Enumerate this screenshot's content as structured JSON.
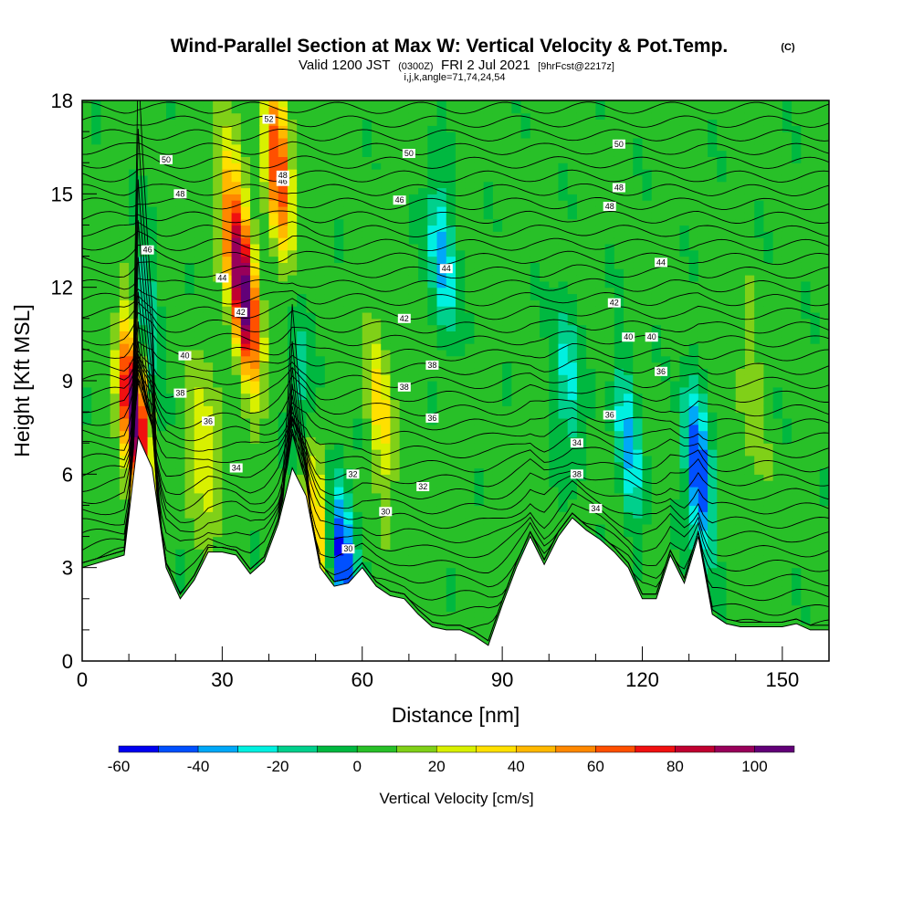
{
  "title": {
    "main": "Wind-Parallel Section at Max W: Vertical Velocity & Pot.Temp.",
    "copyright": "(C)",
    "valid_prefix": "Valid 1200 JST",
    "valid_zulu": "(0300Z)",
    "valid_date": "FRI 2 Jul 2021",
    "forecast": "[9hrFcst@2217z]",
    "section_params": "i,j,k,angle=71,74,24,54"
  },
  "chart_data": {
    "type": "heatmap",
    "xlabel": "Distance [nm]",
    "ylabel": "Height [Kft MSL]",
    "xlim": [
      0,
      160
    ],
    "ylim": [
      0,
      18
    ],
    "x_ticks": [
      "0",
      "30",
      "60",
      "90",
      "120",
      "150"
    ],
    "y_ticks": [
      "0",
      "3",
      "6",
      "9",
      "12",
      "15",
      "18"
    ],
    "x_tick_values": [
      0,
      30,
      60,
      90,
      120,
      150
    ],
    "y_tick_values": [
      0,
      3,
      6,
      9,
      12,
      15,
      18
    ],
    "colorbar": {
      "title": "Vertical Velocity [cm/s]",
      "range": [
        -60,
        110
      ],
      "step": 10,
      "tick_labels": [
        "-60",
        "-40",
        "-20",
        "0",
        "20",
        "40",
        "60",
        "80",
        "100"
      ],
      "tick_values": [
        -60,
        -40,
        -20,
        0,
        20,
        40,
        60,
        80,
        100
      ],
      "colors": [
        "#0000f0",
        "#0050ff",
        "#00a8f8",
        "#00f0e0",
        "#00d08c",
        "#00b840",
        "#28c028",
        "#80d018",
        "#d8f000",
        "#ffe000",
        "#ffb800",
        "#ff8800",
        "#ff5000",
        "#f01010",
        "#c00030",
        "#98005a",
        "#620078"
      ]
    },
    "terrain_profile_kft": {
      "x": [
        0,
        9,
        12,
        15,
        18,
        21,
        24,
        27,
        30,
        33,
        36,
        39,
        42,
        45,
        48,
        51,
        54,
        57,
        60,
        63,
        66,
        69,
        72,
        75,
        78,
        81,
        84,
        87,
        90,
        93,
        96,
        99,
        102,
        105,
        108,
        111,
        114,
        117,
        120,
        123,
        126,
        129,
        132,
        135,
        138,
        141,
        144,
        147,
        150,
        153,
        156,
        160
      ],
      "y": [
        3.0,
        3.4,
        7.2,
        6.2,
        3.0,
        2.0,
        2.6,
        3.5,
        3.5,
        3.4,
        2.8,
        3.2,
        4.4,
        6.2,
        5.3,
        3.0,
        2.4,
        2.5,
        3.0,
        2.4,
        2.1,
        2.0,
        1.5,
        1.1,
        1.0,
        1.0,
        0.8,
        0.5,
        1.8,
        3.0,
        4.0,
        3.1,
        4.0,
        4.6,
        4.2,
        3.9,
        3.5,
        3.0,
        2.0,
        2.0,
        3.4,
        2.5,
        4.0,
        1.5,
        1.2,
        1.1,
        1.1,
        1.1,
        1.1,
        1.2,
        1.0,
        1.0
      ]
    },
    "vertical_velocity_features": [
      {
        "x": 11,
        "y": 8.0,
        "w": 110
      },
      {
        "x": 26,
        "y": 6.8,
        "w": 30
      },
      {
        "x": 32,
        "y": 14.0,
        "w": 50
      },
      {
        "x": 35,
        "y": 11.5,
        "w": 90
      },
      {
        "x": 42,
        "y": 16.0,
        "w": 70
      },
      {
        "x": 50,
        "y": 5.0,
        "w": 40
      },
      {
        "x": 56,
        "y": 3.3,
        "w": -60
      },
      {
        "x": 64,
        "y": 8.0,
        "w": 30
      },
      {
        "x": 77,
        "y": 13.0,
        "w": -40
      },
      {
        "x": 14,
        "y": 11.0,
        "w": -25
      },
      {
        "x": 47,
        "y": 8.5,
        "w": -25
      },
      {
        "x": 104,
        "y": 9.0,
        "w": -30
      },
      {
        "x": 117,
        "y": 7.0,
        "w": -35
      },
      {
        "x": 132,
        "y": 6.0,
        "w": -60
      },
      {
        "x": 143,
        "y": 8.8,
        "w": 15
      }
    ],
    "potential_temperature_contours": [
      {
        "label": "30"
      },
      {
        "label": "30"
      },
      {
        "label": "32"
      },
      {
        "label": "32"
      },
      {
        "label": "34"
      },
      {
        "label": "34"
      },
      {
        "label": "34"
      },
      {
        "label": "36"
      },
      {
        "label": "36"
      },
      {
        "label": "36"
      },
      {
        "label": "36"
      },
      {
        "label": "38"
      },
      {
        "label": "38"
      },
      {
        "label": "38"
      },
      {
        "label": "38"
      },
      {
        "label": "40"
      },
      {
        "label": "40"
      },
      {
        "label": "40"
      },
      {
        "label": "42"
      },
      {
        "label": "42"
      },
      {
        "label": "42"
      },
      {
        "label": "44"
      },
      {
        "label": "44"
      },
      {
        "label": "44"
      },
      {
        "label": "46"
      },
      {
        "label": "46"
      },
      {
        "label": "46"
      },
      {
        "label": "48"
      },
      {
        "label": "48"
      },
      {
        "label": "48"
      },
      {
        "label": "48"
      },
      {
        "label": "50"
      },
      {
        "label": "50"
      },
      {
        "label": "50"
      },
      {
        "label": "52"
      }
    ]
  }
}
